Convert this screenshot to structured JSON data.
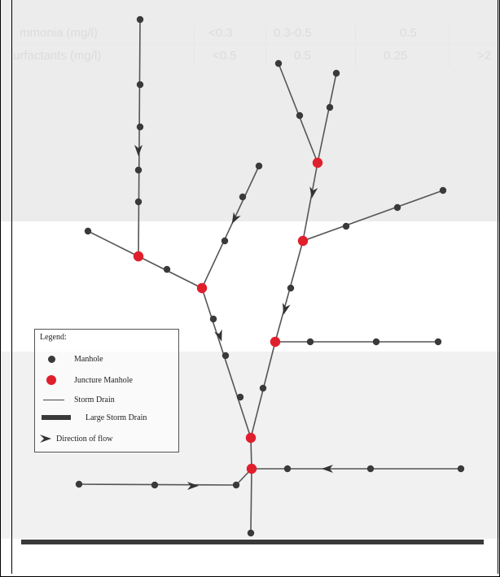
{
  "background_table": {
    "row1": [
      "mmonia (mg/l)",
      "<0.3",
      "0.3-0.5",
      "0.5",
      ""
    ],
    "row2": [
      "urfactants (mg/l)",
      "<0.5",
      "0.5",
      "0.25",
      ">2"
    ]
  },
  "legend": {
    "title": "Legend:",
    "manhole": "Manhole",
    "juncture": "Juncture Manhole",
    "storm_drain": "Storm Drain",
    "large_drain": "Large Storm Drain",
    "flow": "Direction of flow"
  },
  "colors": {
    "manhole": "#3a3a3a",
    "juncture": "#e01f2d",
    "line": "#555555",
    "large_drain": "#3a3a3a"
  },
  "icons": [
    "manhole-dot-icon",
    "juncture-dot-icon",
    "storm-drain-line-icon",
    "large-drain-bar-icon",
    "flow-arrow-icon"
  ]
}
